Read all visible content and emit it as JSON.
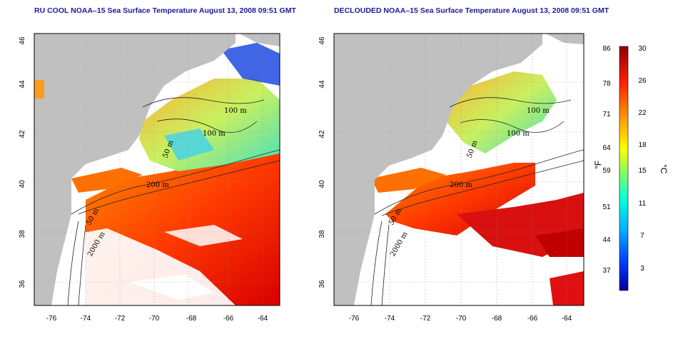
{
  "titles": {
    "left": "RU COOL NOAA–15 Sea Surface Temperature August 13, 2008 09:51 GMT",
    "right": "DECLOUDED NOAA–15 Sea Surface Temperature August 13, 2008 09:51 GMT"
  },
  "axes": {
    "lat_ticks": [
      "46",
      "44",
      "42",
      "40",
      "38",
      "36"
    ],
    "lon_ticks": [
      "-76",
      "-74",
      "-72",
      "-70",
      "-68",
      "-66",
      "-64"
    ]
  },
  "contour_labels": {
    "left": [
      "100 m",
      "100 m",
      "50 m",
      "200 m",
      "50 m",
      "2000 m"
    ],
    "right": [
      "100 m",
      "100 m",
      "50 m",
      "200 m",
      "50 m",
      "2000 m"
    ]
  },
  "colorbar": {
    "fahrenheit_ticks": [
      "86",
      "78",
      "71",
      "64",
      "59",
      "51",
      "44",
      "37"
    ],
    "celsius_ticks": [
      "30",
      "26",
      "22",
      "18",
      "15",
      "11",
      "7",
      "3"
    ],
    "fahrenheit_label": "°F",
    "celsius_label": "°C",
    "colors": [
      "#000080",
      "#0000ff",
      "#0080ff",
      "#00ffff",
      "#80ff80",
      "#ffff00",
      "#ff8000",
      "#ff0000",
      "#800000"
    ]
  },
  "colors": {
    "land": "#c0c0c0",
    "cloud": "#ffffff",
    "title": "#1a1a9c"
  }
}
